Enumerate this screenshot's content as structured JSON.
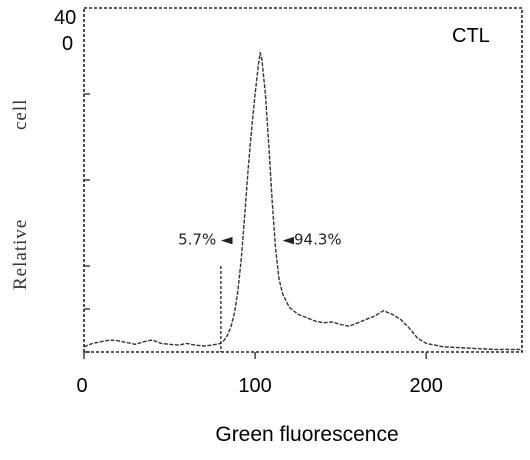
{
  "chart_data": {
    "type": "line",
    "title": "",
    "panel_label": "CTL",
    "xlabel": "Green fluorescence",
    "ylabel_parts": [
      "Relative",
      "cell"
    ],
    "xlim": [
      0,
      256
    ],
    "ylim": [
      0,
      400
    ],
    "x_ticks": [
      0,
      100,
      200
    ],
    "y_top_tick_lines": [
      "40",
      "0"
    ],
    "gate_x": 80,
    "annotations": [
      {
        "text": "5.7% ◄",
        "x": 55,
        "y": 125
      },
      {
        "text": "◄94.3%",
        "x": 116,
        "y": 125
      }
    ],
    "series": [
      {
        "x": [
          0,
          5,
          10,
          15,
          20,
          25,
          30,
          35,
          40,
          45,
          50,
          55,
          60,
          65,
          70,
          75,
          80,
          82,
          84,
          86,
          88,
          90,
          92,
          94,
          96,
          98,
          100,
          102,
          103,
          104,
          106,
          108,
          110,
          112,
          114,
          116,
          118,
          120,
          125,
          130,
          135,
          140,
          145,
          150,
          155,
          160,
          165,
          170,
          175,
          180,
          185,
          190,
          195,
          200,
          205,
          210,
          220,
          230,
          240,
          250,
          256
        ],
        "y": [
          6,
          10,
          12,
          14,
          13,
          11,
          9,
          12,
          14,
          10,
          9,
          8,
          10,
          8,
          7,
          8,
          10,
          14,
          20,
          30,
          46,
          72,
          110,
          160,
          215,
          260,
          300,
          335,
          348,
          340,
          300,
          240,
          175,
          120,
          85,
          68,
          60,
          52,
          44,
          40,
          36,
          34,
          35,
          32,
          30,
          34,
          38,
          42,
          48,
          44,
          38,
          28,
          16,
          10,
          8,
          6,
          5,
          4,
          3,
          3,
          3
        ]
      }
    ]
  }
}
